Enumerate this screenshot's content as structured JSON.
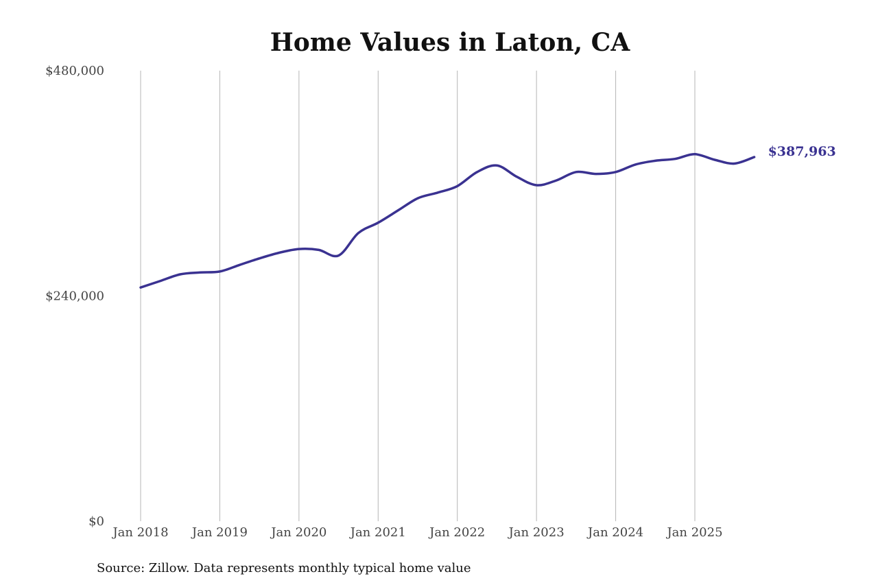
{
  "chart_data": {
    "type": "line",
    "title": "Home Values in Laton, CA",
    "xlabel": "",
    "ylabel": "",
    "ylim": [
      0,
      480000
    ],
    "y_ticks": [
      {
        "value": 0,
        "label": "$0"
      },
      {
        "value": 240000,
        "label": "$240,000"
      },
      {
        "value": 480000,
        "label": "$480,000"
      }
    ],
    "x_ticks": [
      {
        "value": "2018-01",
        "label": "Jan 2018"
      },
      {
        "value": "2019-01",
        "label": "Jan 2019"
      },
      {
        "value": "2020-01",
        "label": "Jan 2020"
      },
      {
        "value": "2021-01",
        "label": "Jan 2021"
      },
      {
        "value": "2022-01",
        "label": "Jan 2022"
      },
      {
        "value": "2023-01",
        "label": "Jan 2023"
      },
      {
        "value": "2024-01",
        "label": "Jan 2024"
      },
      {
        "value": "2025-01",
        "label": "Jan 2025"
      }
    ],
    "grid": {
      "vertical": true,
      "horizontal": false
    },
    "line_color": "#3a3291",
    "end_label": "$387,963",
    "series": [
      {
        "x": [
          "2018-01",
          "2018-04",
          "2018-07",
          "2018-10",
          "2019-01",
          "2019-04",
          "2019-07",
          "2019-10",
          "2020-01",
          "2020-04",
          "2020-07",
          "2020-10",
          "2021-01",
          "2021-04",
          "2021-07",
          "2021-10",
          "2022-01",
          "2022-04",
          "2022-07",
          "2022-10",
          "2023-01",
          "2023-04",
          "2023-07",
          "2023-10",
          "2024-01",
          "2024-04",
          "2024-07",
          "2024-10",
          "2025-01",
          "2025-04",
          "2025-07",
          "2025-10"
        ],
        "values": [
          249000,
          256000,
          263000,
          265000,
          266000,
          273000,
          280000,
          286000,
          290000,
          289000,
          283000,
          307000,
          318000,
          331000,
          344000,
          350000,
          357000,
          372000,
          379000,
          367000,
          358000,
          363000,
          372000,
          370000,
          372000,
          380000,
          384000,
          386000,
          391000,
          385000,
          381000,
          387963
        ]
      }
    ]
  },
  "source": "Source: Zillow. Data represents monthly typical home value"
}
